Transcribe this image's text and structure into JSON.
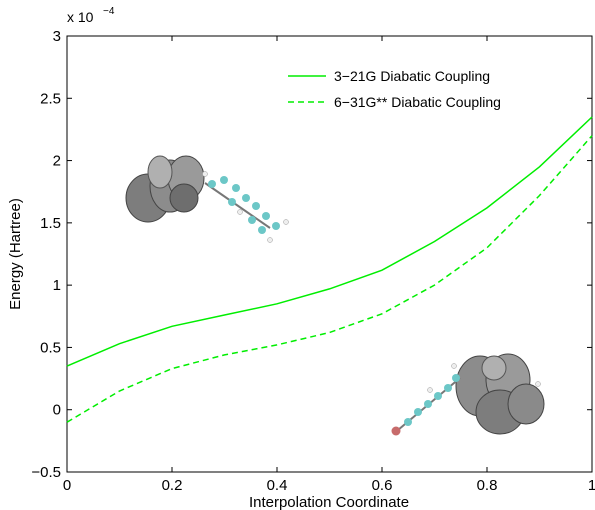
{
  "chart_data": {
    "type": "line",
    "title": "",
    "xlabel": "Interpolation Coordinate",
    "ylabel": "Energy (Hartree)",
    "xlim": [
      0,
      1
    ],
    "ylim": [
      -0.5,
      3
    ],
    "y_multiplier_base": "x 10",
    "y_multiplier_exponent": "−4",
    "x_ticks": [
      "0",
      "0.2",
      "0.4",
      "0.6",
      "0.8",
      "1"
    ],
    "y_ticks": [
      "−0.5",
      "0",
      "0.5",
      "1",
      "1.5",
      "2",
      "2.5",
      "3"
    ],
    "x_tick_values": [
      0,
      0.2,
      0.4,
      0.6,
      0.8,
      1
    ],
    "y_tick_values": [
      -0.5,
      0,
      0.5,
      1,
      1.5,
      2,
      2.5,
      3
    ],
    "grid": false,
    "legend_position": "top-right",
    "series": [
      {
        "name": "3−21G Diabatic Coupling",
        "style": "solid",
        "color": "#00ee00",
        "x": [
          0,
          0.1,
          0.2,
          0.3,
          0.4,
          0.5,
          0.6,
          0.7,
          0.8,
          0.9,
          1.0
        ],
        "y": [
          0.35,
          0.53,
          0.67,
          0.76,
          0.85,
          0.97,
          1.12,
          1.35,
          1.62,
          1.95,
          2.35
        ]
      },
      {
        "name": "6−31G** Diabatic Coupling",
        "style": "dashed",
        "color": "#00ee00",
        "x": [
          0,
          0.1,
          0.2,
          0.3,
          0.4,
          0.5,
          0.6,
          0.7,
          0.8,
          0.9,
          1.0
        ],
        "y": [
          -0.1,
          0.15,
          0.33,
          0.44,
          0.52,
          0.62,
          0.77,
          1.0,
          1.3,
          1.72,
          2.2
        ]
      }
    ]
  }
}
